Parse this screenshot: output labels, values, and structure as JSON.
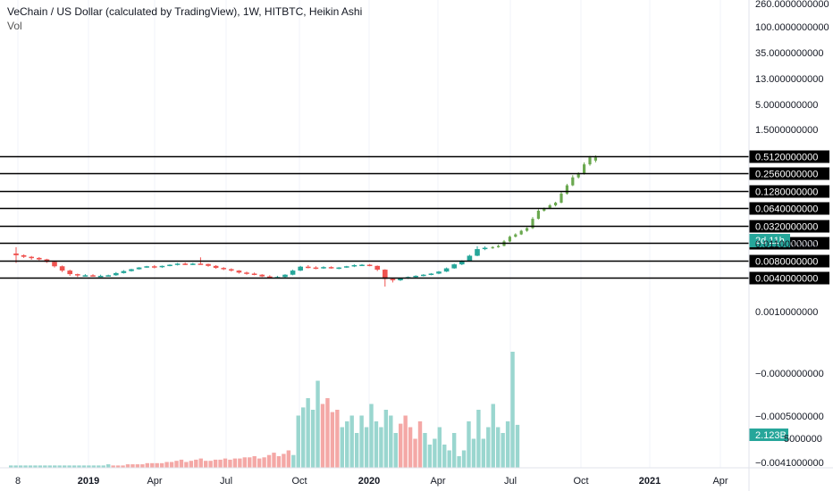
{
  "header": {
    "title": "VeChain / US Dollar (calculated by TradingView), 1W, HITBTC, Heikin Ashi",
    "volume_label": "Vol"
  },
  "colors": {
    "up": "#26a69a",
    "down": "#ef5350",
    "projection": "#6aa84f",
    "volume_up": "#9ad6cf",
    "volume_down": "#f4a8a6",
    "badge": "#26a69a",
    "level_line": "#000000"
  },
  "chart_data": {
    "type": "candlestick",
    "title": "VeChain / US Dollar (calculated by TradingView), 1W, HITBTC, Heikin Ashi",
    "price_scale": "log",
    "x_ticks": [
      "8",
      "2019",
      "Apr",
      "Jul",
      "Oct",
      "2020",
      "Apr",
      "Jul",
      "Oct",
      "2021",
      "Apr"
    ],
    "bold_x_ticks": [
      "2019",
      "2020",
      "2021"
    ],
    "price_axis_labels": [
      "260.0000000000",
      "100.0000000000",
      "35.0000000000",
      "13.0000000000",
      "5.0000000000",
      "1.5000000000",
      "0.0010000000"
    ],
    "horizontal_levels": [
      "0.5120000000",
      "0.2560000000",
      "0.1280000000",
      "0.0640000000",
      "0.0320000000",
      "0.0160000000",
      "0.0080000000",
      "0.0040000000"
    ],
    "countdown_badge": "2d 11h",
    "volume_axis_labels": [
      "−0.0000000000",
      "−0.0005000000",
      "−0.0041000000"
    ],
    "volume_badge": "2.123B",
    "volume_badge_partial": "5000000",
    "price_candles": [
      {
        "date": "2018-11",
        "open": 0.0105,
        "high": 0.0135,
        "low": 0.0072,
        "close": 0.0098
      },
      {
        "date": "2018-11",
        "open": 0.0098,
        "high": 0.0101,
        "low": 0.0088,
        "close": 0.0092
      },
      {
        "date": "2018-11",
        "open": 0.0092,
        "high": 0.0095,
        "low": 0.0082,
        "close": 0.0088
      },
      {
        "date": "2018-12",
        "open": 0.0088,
        "high": 0.0091,
        "low": 0.008,
        "close": 0.0083
      },
      {
        "date": "2018-12",
        "open": 0.0083,
        "high": 0.0085,
        "low": 0.0072,
        "close": 0.0075
      },
      {
        "date": "2018-12",
        "open": 0.0075,
        "high": 0.0078,
        "low": 0.006,
        "close": 0.0063
      },
      {
        "date": "2018-12",
        "open": 0.0063,
        "high": 0.0065,
        "low": 0.005,
        "close": 0.0053
      },
      {
        "date": "2019-01",
        "open": 0.0053,
        "high": 0.0055,
        "low": 0.0043,
        "close": 0.0046
      },
      {
        "date": "2019-01",
        "open": 0.0046,
        "high": 0.0047,
        "low": 0.0041,
        "close": 0.0044
      },
      {
        "date": "2019-01",
        "open": 0.0044,
        "high": 0.0046,
        "low": 0.0042,
        "close": 0.0044
      },
      {
        "date": "2019-02",
        "open": 0.0044,
        "high": 0.0046,
        "low": 0.0042,
        "close": 0.0043
      },
      {
        "date": "2019-02",
        "open": 0.0043,
        "high": 0.0045,
        "low": 0.0042,
        "close": 0.0043
      },
      {
        "date": "2019-02",
        "open": 0.0043,
        "high": 0.0045,
        "low": 0.0042,
        "close": 0.0044
      },
      {
        "date": "2019-03",
        "open": 0.0044,
        "high": 0.005,
        "low": 0.0043,
        "close": 0.0048
      },
      {
        "date": "2019-03",
        "open": 0.0048,
        "high": 0.0054,
        "low": 0.0047,
        "close": 0.0052
      },
      {
        "date": "2019-03",
        "open": 0.0052,
        "high": 0.0057,
        "low": 0.0051,
        "close": 0.0056
      },
      {
        "date": "2019-04",
        "open": 0.0056,
        "high": 0.0061,
        "low": 0.0055,
        "close": 0.006
      },
      {
        "date": "2019-04",
        "open": 0.006,
        "high": 0.0064,
        "low": 0.0059,
        "close": 0.0063
      },
      {
        "date": "2019-04",
        "open": 0.0063,
        "high": 0.0066,
        "low": 0.0058,
        "close": 0.0061
      },
      {
        "date": "2019-05",
        "open": 0.0061,
        "high": 0.0065,
        "low": 0.0059,
        "close": 0.0064
      },
      {
        "date": "2019-05",
        "open": 0.0064,
        "high": 0.0068,
        "low": 0.0063,
        "close": 0.0067
      },
      {
        "date": "2019-05",
        "open": 0.0067,
        "high": 0.0072,
        "low": 0.0065,
        "close": 0.007
      },
      {
        "date": "2019-06",
        "open": 0.007,
        "high": 0.0073,
        "low": 0.0066,
        "close": 0.0068
      },
      {
        "date": "2019-06",
        "open": 0.0068,
        "high": 0.0072,
        "low": 0.0066,
        "close": 0.007
      },
      {
        "date": "2019-06",
        "open": 0.007,
        "high": 0.009,
        "low": 0.0067,
        "close": 0.0069
      },
      {
        "date": "2019-07",
        "open": 0.0069,
        "high": 0.007,
        "low": 0.0062,
        "close": 0.0064
      },
      {
        "date": "2019-07",
        "open": 0.0064,
        "high": 0.0066,
        "low": 0.0057,
        "close": 0.0059
      },
      {
        "date": "2019-07",
        "open": 0.0059,
        "high": 0.0061,
        "low": 0.0054,
        "close": 0.0056
      },
      {
        "date": "2019-08",
        "open": 0.0056,
        "high": 0.0058,
        "low": 0.0051,
        "close": 0.0053
      },
      {
        "date": "2019-08",
        "open": 0.0053,
        "high": 0.0054,
        "low": 0.0047,
        "close": 0.0049
      },
      {
        "date": "2019-08",
        "open": 0.0049,
        "high": 0.0051,
        "low": 0.0045,
        "close": 0.0047
      },
      {
        "date": "2019-09",
        "open": 0.0047,
        "high": 0.0049,
        "low": 0.0044,
        "close": 0.0045
      },
      {
        "date": "2019-09",
        "open": 0.0045,
        "high": 0.0046,
        "low": 0.0041,
        "close": 0.0042
      },
      {
        "date": "2019-10",
        "open": 0.0042,
        "high": 0.0044,
        "low": 0.004,
        "close": 0.0041
      },
      {
        "date": "2019-10",
        "open": 0.0041,
        "high": 0.0043,
        "low": 0.0039,
        "close": 0.0041
      },
      {
        "date": "2019-10",
        "open": 0.0041,
        "high": 0.0046,
        "low": 0.004,
        "close": 0.0045
      },
      {
        "date": "2019-11",
        "open": 0.0045,
        "high": 0.0055,
        "low": 0.0044,
        "close": 0.0053
      },
      {
        "date": "2019-11",
        "open": 0.0053,
        "high": 0.0064,
        "low": 0.0052,
        "close": 0.0062
      },
      {
        "date": "2019-11",
        "open": 0.0062,
        "high": 0.0066,
        "low": 0.0058,
        "close": 0.006
      },
      {
        "date": "2019-12",
        "open": 0.006,
        "high": 0.0063,
        "low": 0.0056,
        "close": 0.0059
      },
      {
        "date": "2019-12",
        "open": 0.0059,
        "high": 0.0063,
        "low": 0.0057,
        "close": 0.0061
      },
      {
        "date": "2019-12",
        "open": 0.0061,
        "high": 0.0063,
        "low": 0.0057,
        "close": 0.0058
      },
      {
        "date": "2020-01",
        "open": 0.0058,
        "high": 0.0061,
        "low": 0.0056,
        "close": 0.006
      },
      {
        "date": "2020-01",
        "open": 0.006,
        "high": 0.0064,
        "low": 0.0059,
        "close": 0.0063
      },
      {
        "date": "2020-01",
        "open": 0.0063,
        "high": 0.0068,
        "low": 0.0061,
        "close": 0.0066
      },
      {
        "date": "2020-02",
        "open": 0.0066,
        "high": 0.0069,
        "low": 0.0064,
        "close": 0.0067
      },
      {
        "date": "2020-02",
        "open": 0.0067,
        "high": 0.0069,
        "low": 0.0063,
        "close": 0.0064
      },
      {
        "date": "2020-02",
        "open": 0.0064,
        "high": 0.0065,
        "low": 0.0052,
        "close": 0.0055
      },
      {
        "date": "2020-03",
        "open": 0.0055,
        "high": 0.0056,
        "low": 0.0028,
        "close": 0.0038
      },
      {
        "date": "2020-03",
        "open": 0.0038,
        "high": 0.004,
        "low": 0.0033,
        "close": 0.0036
      },
      {
        "date": "2020-03",
        "open": 0.0036,
        "high": 0.004,
        "low": 0.0035,
        "close": 0.0039
      },
      {
        "date": "2020-04",
        "open": 0.0039,
        "high": 0.0042,
        "low": 0.0038,
        "close": 0.0041
      },
      {
        "date": "2020-04",
        "open": 0.0041,
        "high": 0.0044,
        "low": 0.004,
        "close": 0.0043
      },
      {
        "date": "2020-04",
        "open": 0.0043,
        "high": 0.0046,
        "low": 0.0042,
        "close": 0.0045
      },
      {
        "date": "2020-05",
        "open": 0.0045,
        "high": 0.0048,
        "low": 0.0044,
        "close": 0.0047
      },
      {
        "date": "2020-05",
        "open": 0.0047,
        "high": 0.0052,
        "low": 0.0046,
        "close": 0.0051
      },
      {
        "date": "2020-05",
        "open": 0.0051,
        "high": 0.006,
        "low": 0.005,
        "close": 0.0058
      },
      {
        "date": "2020-06",
        "open": 0.0058,
        "high": 0.007,
        "low": 0.0057,
        "close": 0.0068
      },
      {
        "date": "2020-06",
        "open": 0.0068,
        "high": 0.008,
        "low": 0.0066,
        "close": 0.0078
      },
      {
        "date": "2020-06",
        "open": 0.0078,
        "high": 0.01,
        "low": 0.0076,
        "close": 0.0096
      },
      {
        "date": "2020-07",
        "open": 0.0096,
        "high": 0.014,
        "low": 0.0094,
        "close": 0.0125
      },
      {
        "date": "2020-07",
        "open": 0.0125,
        "high": 0.014,
        "low": 0.012,
        "close": 0.0132
      }
    ],
    "projected_candles": [
      {
        "open": 0.0132,
        "high": 0.014,
        "low": 0.0127,
        "close": 0.0136
      },
      {
        "open": 0.0136,
        "high": 0.015,
        "low": 0.0132,
        "close": 0.0142
      },
      {
        "open": 0.0142,
        "high": 0.018,
        "low": 0.014,
        "close": 0.017
      },
      {
        "open": 0.017,
        "high": 0.0215,
        "low": 0.0165,
        "close": 0.0205
      },
      {
        "open": 0.0205,
        "high": 0.0235,
        "low": 0.02,
        "close": 0.0225
      },
      {
        "open": 0.0225,
        "high": 0.027,
        "low": 0.022,
        "close": 0.026
      },
      {
        "open": 0.026,
        "high": 0.03,
        "low": 0.025,
        "close": 0.029
      },
      {
        "open": 0.029,
        "high": 0.045,
        "low": 0.028,
        "close": 0.042
      },
      {
        "open": 0.042,
        "high": 0.062,
        "low": 0.041,
        "close": 0.058
      },
      {
        "open": 0.058,
        "high": 0.066,
        "low": 0.056,
        "close": 0.064
      },
      {
        "open": 0.064,
        "high": 0.076,
        "low": 0.062,
        "close": 0.072
      },
      {
        "open": 0.072,
        "high": 0.083,
        "low": 0.069,
        "close": 0.08
      },
      {
        "open": 0.08,
        "high": 0.125,
        "low": 0.078,
        "close": 0.115
      },
      {
        "open": 0.115,
        "high": 0.17,
        "low": 0.11,
        "close": 0.16
      },
      {
        "open": 0.16,
        "high": 0.24,
        "low": 0.155,
        "close": 0.22
      },
      {
        "open": 0.22,
        "high": 0.27,
        "low": 0.21,
        "close": 0.255
      },
      {
        "open": 0.255,
        "high": 0.4,
        "low": 0.245,
        "close": 0.37
      },
      {
        "open": 0.37,
        "high": 0.52,
        "low": 0.35,
        "close": 0.49
      },
      {
        "open": 0.49,
        "high": 0.53,
        "low": 0.4,
        "close": 0.43
      }
    ],
    "volume_bars": [
      0.02,
      0.02,
      0.02,
      0.02,
      0.02,
      0.02,
      0.02,
      0.02,
      0.02,
      0.02,
      0.02,
      0.02,
      0.02,
      0.02,
      0.02,
      0.02,
      0.02,
      0.02,
      0.02,
      0.02,
      0.03,
      0.02,
      0.02,
      0.02,
      0.03,
      0.03,
      0.03,
      0.03,
      0.04,
      0.04,
      0.04,
      0.04,
      0.05,
      0.05,
      0.06,
      0.07,
      0.05,
      0.06,
      0.07,
      0.08,
      0.06,
      0.06,
      0.07,
      0.07,
      0.08,
      0.07,
      0.08,
      0.08,
      0.09,
      0.09,
      0.1,
      0.08,
      0.09,
      0.11,
      0.13,
      0.1,
      0.12,
      0.15,
      0.11,
      0.45,
      0.52,
      0.6,
      0.5,
      0.75,
      0.55,
      0.6,
      0.48,
      0.5,
      0.35,
      0.4,
      0.45,
      0.3,
      0.45,
      0.35,
      0.55,
      0.4,
      0.35,
      0.5,
      0.45,
      0.3,
      0.38,
      0.45,
      0.35,
      0.25,
      0.4,
      0.3,
      0.2,
      0.25,
      0.35,
      0.2,
      0.15,
      0.3,
      0.1,
      0.15,
      0.4,
      0.25,
      0.5,
      0.25,
      0.35,
      0.55,
      0.35,
      0.3,
      0.4,
      1.0,
      0.37
    ],
    "volume_bar_direction": [
      "up",
      "up",
      "up",
      "up",
      "up",
      "up",
      "up",
      "up",
      "up",
      "up",
      "up",
      "up",
      "up",
      "up",
      "up",
      "up",
      "up",
      "up",
      "up",
      "up",
      "up",
      "down",
      "down",
      "down",
      "down",
      "down",
      "down",
      "down",
      "down",
      "down",
      "down",
      "down",
      "down",
      "down",
      "down",
      "down",
      "down",
      "down",
      "down",
      "down",
      "down",
      "down",
      "down",
      "down",
      "down",
      "down",
      "down",
      "down",
      "down",
      "down",
      "down",
      "down",
      "down",
      "down",
      "down",
      "down",
      "down",
      "down",
      "up",
      "up",
      "up",
      "up",
      "up",
      "up",
      "down",
      "down",
      "down",
      "down",
      "up",
      "up",
      "up",
      "up",
      "up",
      "up",
      "up",
      "up",
      "up",
      "up",
      "up",
      "up",
      "down",
      "down",
      "down",
      "down",
      "down",
      "up",
      "up",
      "up",
      "up",
      "up",
      "up",
      "up",
      "up",
      "up",
      "up",
      "up",
      "up",
      "up",
      "up",
      "up",
      "up",
      "up",
      "up",
      "up",
      "up"
    ]
  }
}
